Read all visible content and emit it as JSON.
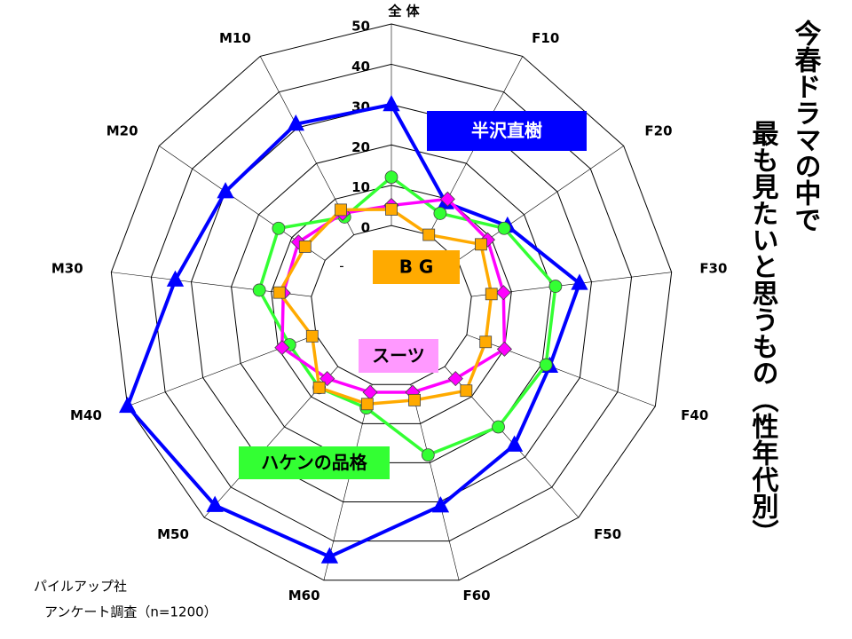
{
  "chart_data": {
    "type": "radar",
    "title": [
      "今春ドラマの中で",
      "最も見たいと思うもの（性年代別）"
    ],
    "notes": [
      "パイルアップ社",
      "アンケート調査（n=1200）"
    ],
    "center_mark": "-",
    "categories": [
      "全 体",
      "F10",
      "F20",
      "F30",
      "F40",
      "F50",
      "F60",
      "M60",
      "M50",
      "M40",
      "M30",
      "M20",
      "M10"
    ],
    "ylim": [
      -20,
      50
    ],
    "yticks": [
      0,
      10,
      20,
      30,
      40,
      50
    ],
    "series": [
      {
        "name": "半沢直樹",
        "color": "#0000ff",
        "label_fill": "#0000ff",
        "marker": "triangle",
        "values": [
          30,
          9,
          15,
          27,
          22,
          26,
          31,
          44,
          46,
          50,
          34,
          30,
          31
        ]
      },
      {
        "name": "ハケンの品格",
        "color": "#33ff33",
        "label_fill": "#33ff33",
        "marker": "circle",
        "values": [
          12,
          6,
          14,
          21,
          21,
          20,
          18,
          6,
          7,
          7,
          13,
          14,
          5
        ]
      },
      {
        "name": "スーツ",
        "color": "#ff00ff",
        "label_fill": "#ff99ff",
        "marker": "diamond",
        "values": [
          5,
          10,
          9,
          8,
          10,
          4,
          2,
          2,
          4,
          9,
          7,
          8,
          6
        ]
      },
      {
        "name": "B G",
        "color": "#ffaa00",
        "label_fill": "#ffaa00",
        "marker": "square",
        "values": [
          4,
          0,
          7,
          5,
          5,
          8,
          4,
          5,
          7,
          1,
          8,
          6,
          7
        ]
      }
    ]
  }
}
